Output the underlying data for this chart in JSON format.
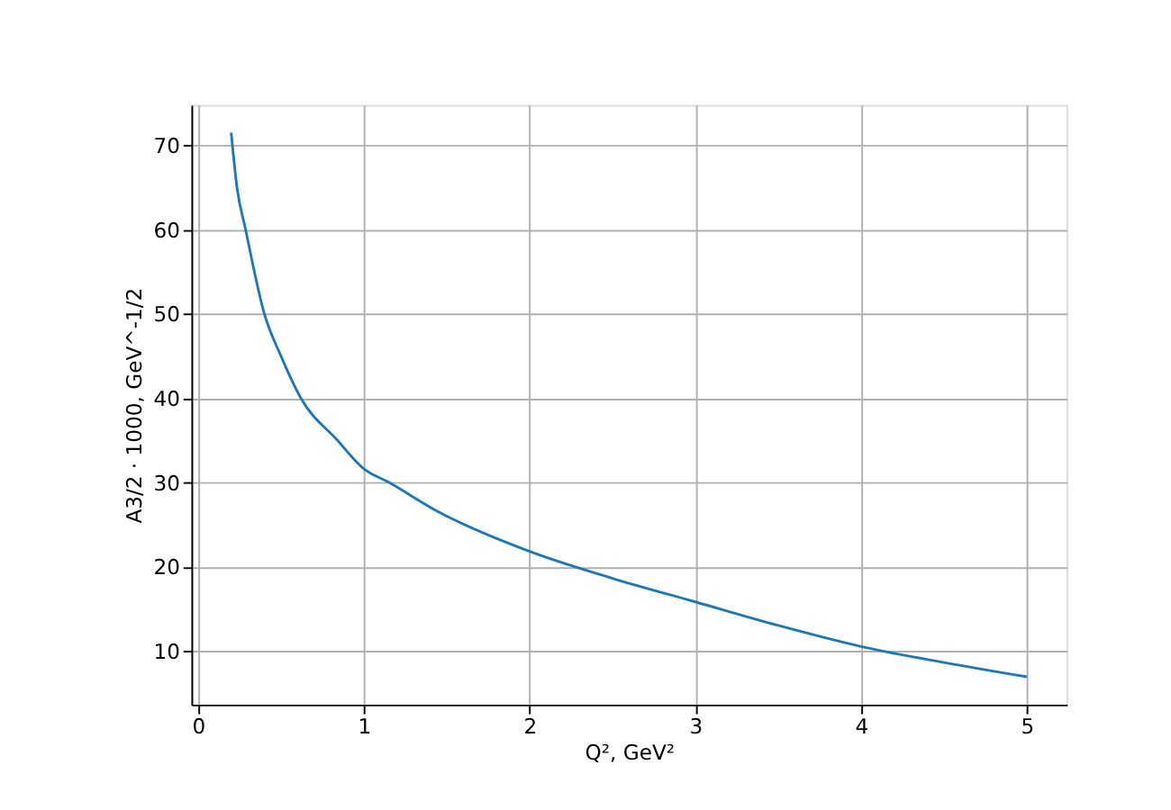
{
  "chart_data": {
    "type": "line",
    "xlabel": "Q², GeV²",
    "ylabel": "A3/2 · 1000, GeV^-1/2",
    "x": [
      0.2,
      0.235,
      0.287,
      0.4,
      0.5,
      0.62,
      0.84,
      1.0,
      1.15,
      1.44,
      2.0,
      2.5,
      3.0,
      3.5,
      4.0,
      4.5,
      5.0
    ],
    "series": [
      {
        "color": "#1f77b4",
        "values": [
          71.5,
          65,
          60,
          50,
          45,
          40,
          35,
          31.6,
          30,
          26.6,
          21.8,
          18.6,
          15.8,
          13.0,
          10.5,
          8.6,
          6.9
        ]
      }
    ],
    "xlim": [
      -0.04,
      5.24
    ],
    "ylim": [
      3.6,
      74.8
    ],
    "xticks": [
      0,
      1,
      2,
      3,
      4,
      5
    ],
    "yticks": [
      10,
      20,
      30,
      40,
      50,
      60,
      70
    ],
    "grid": true,
    "marker": "none",
    "line_style": "solid"
  }
}
